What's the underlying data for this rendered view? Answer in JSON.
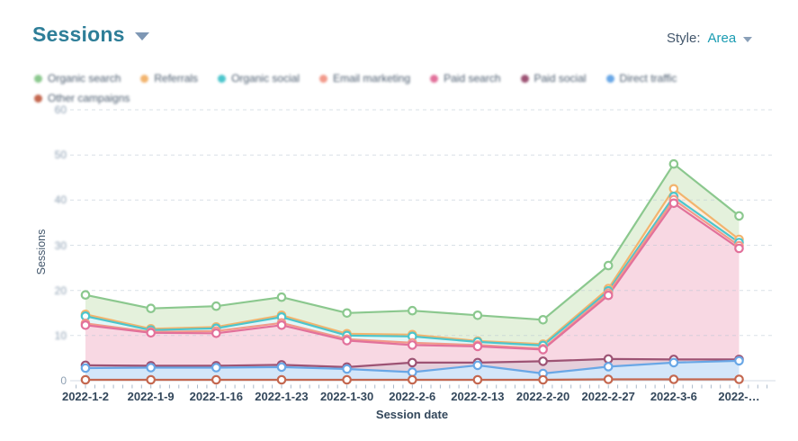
{
  "title": {
    "text": "Sessions"
  },
  "style_control": {
    "label": "Style:",
    "value": "Area"
  },
  "colors": {
    "title_teal": "#2e7e98",
    "style_value_teal": "#1a9cb2",
    "axis_text": "#33475b",
    "ytick_text": "#8ea0b3",
    "gridline": "#b9c6d4"
  },
  "chart_data": {
    "type": "area",
    "title": "Sessions",
    "x": [
      "2022-1-2",
      "2022-1-9",
      "2022-1-16",
      "2022-1-23",
      "2022-1-30",
      "2022-2-6",
      "2022-2-13",
      "2022-2-20",
      "2022-2-27",
      "2022-3-6",
      "2022-…"
    ],
    "xlabel": "Session date",
    "ylabel": "Sessions",
    "ylim": [
      0,
      60
    ],
    "yticks": [
      0,
      10,
      20,
      30,
      40,
      50,
      60
    ],
    "grid": "horizontal-dashed",
    "legend_position": "top",
    "marker": "open-circle",
    "series": [
      {
        "name": "Organic search",
        "color": "#8bc88e",
        "fill": "#e4f1dc",
        "values": [
          19,
          16,
          16.5,
          18.5,
          15,
          15.5,
          14.5,
          13.5,
          25.5,
          48,
          36.5
        ]
      },
      {
        "name": "Referrals",
        "color": "#f2b46e",
        "fill": "#fcefdf",
        "values": [
          14.7,
          11.5,
          11.9,
          14.5,
          10.4,
          10.2,
          8.8,
          8.1,
          20.4,
          42.5,
          31.3
        ]
      },
      {
        "name": "Organic social",
        "color": "#4cc5cc",
        "fill": "#e2f6f7",
        "values": [
          14.3,
          11.2,
          11.6,
          14.1,
          10,
          9.8,
          8.6,
          7.8,
          19.9,
          40.8,
          30.6
        ]
      },
      {
        "name": "Email marketing",
        "color": "#f29a8b",
        "fill": "#fdeae6",
        "values": [
          12.7,
          10.8,
          11,
          12.8,
          9.2,
          8.4,
          7.9,
          7.1,
          19.4,
          40.1,
          29.9
        ]
      },
      {
        "name": "Paid search",
        "color": "#e2719b",
        "fill": "#f8d8e3",
        "values": [
          12.3,
          10.6,
          10.5,
          12.3,
          8.9,
          7.9,
          7.6,
          6.9,
          18.9,
          39.3,
          29.3
        ]
      },
      {
        "name": "Paid social",
        "color": "#9d5374",
        "fill": "#e6cfdb",
        "values": [
          3.4,
          3.3,
          3.3,
          3.5,
          3,
          4,
          4,
          4.3,
          4.8,
          4.7,
          4.7
        ]
      },
      {
        "name": "Direct traffic",
        "color": "#69a7e6",
        "fill": "#d3e6f9",
        "values": [
          2.8,
          2.9,
          2.9,
          3,
          2.6,
          1.9,
          3.4,
          1.6,
          3.1,
          4,
          4.4
        ]
      },
      {
        "name": "Other campaigns",
        "color": "#c4674f",
        "fill": "#fcf3ef",
        "values": [
          0.2,
          0.2,
          0.2,
          0.2,
          0.2,
          0.2,
          0.2,
          0.2,
          0.3,
          0.3,
          0.3
        ]
      }
    ]
  }
}
